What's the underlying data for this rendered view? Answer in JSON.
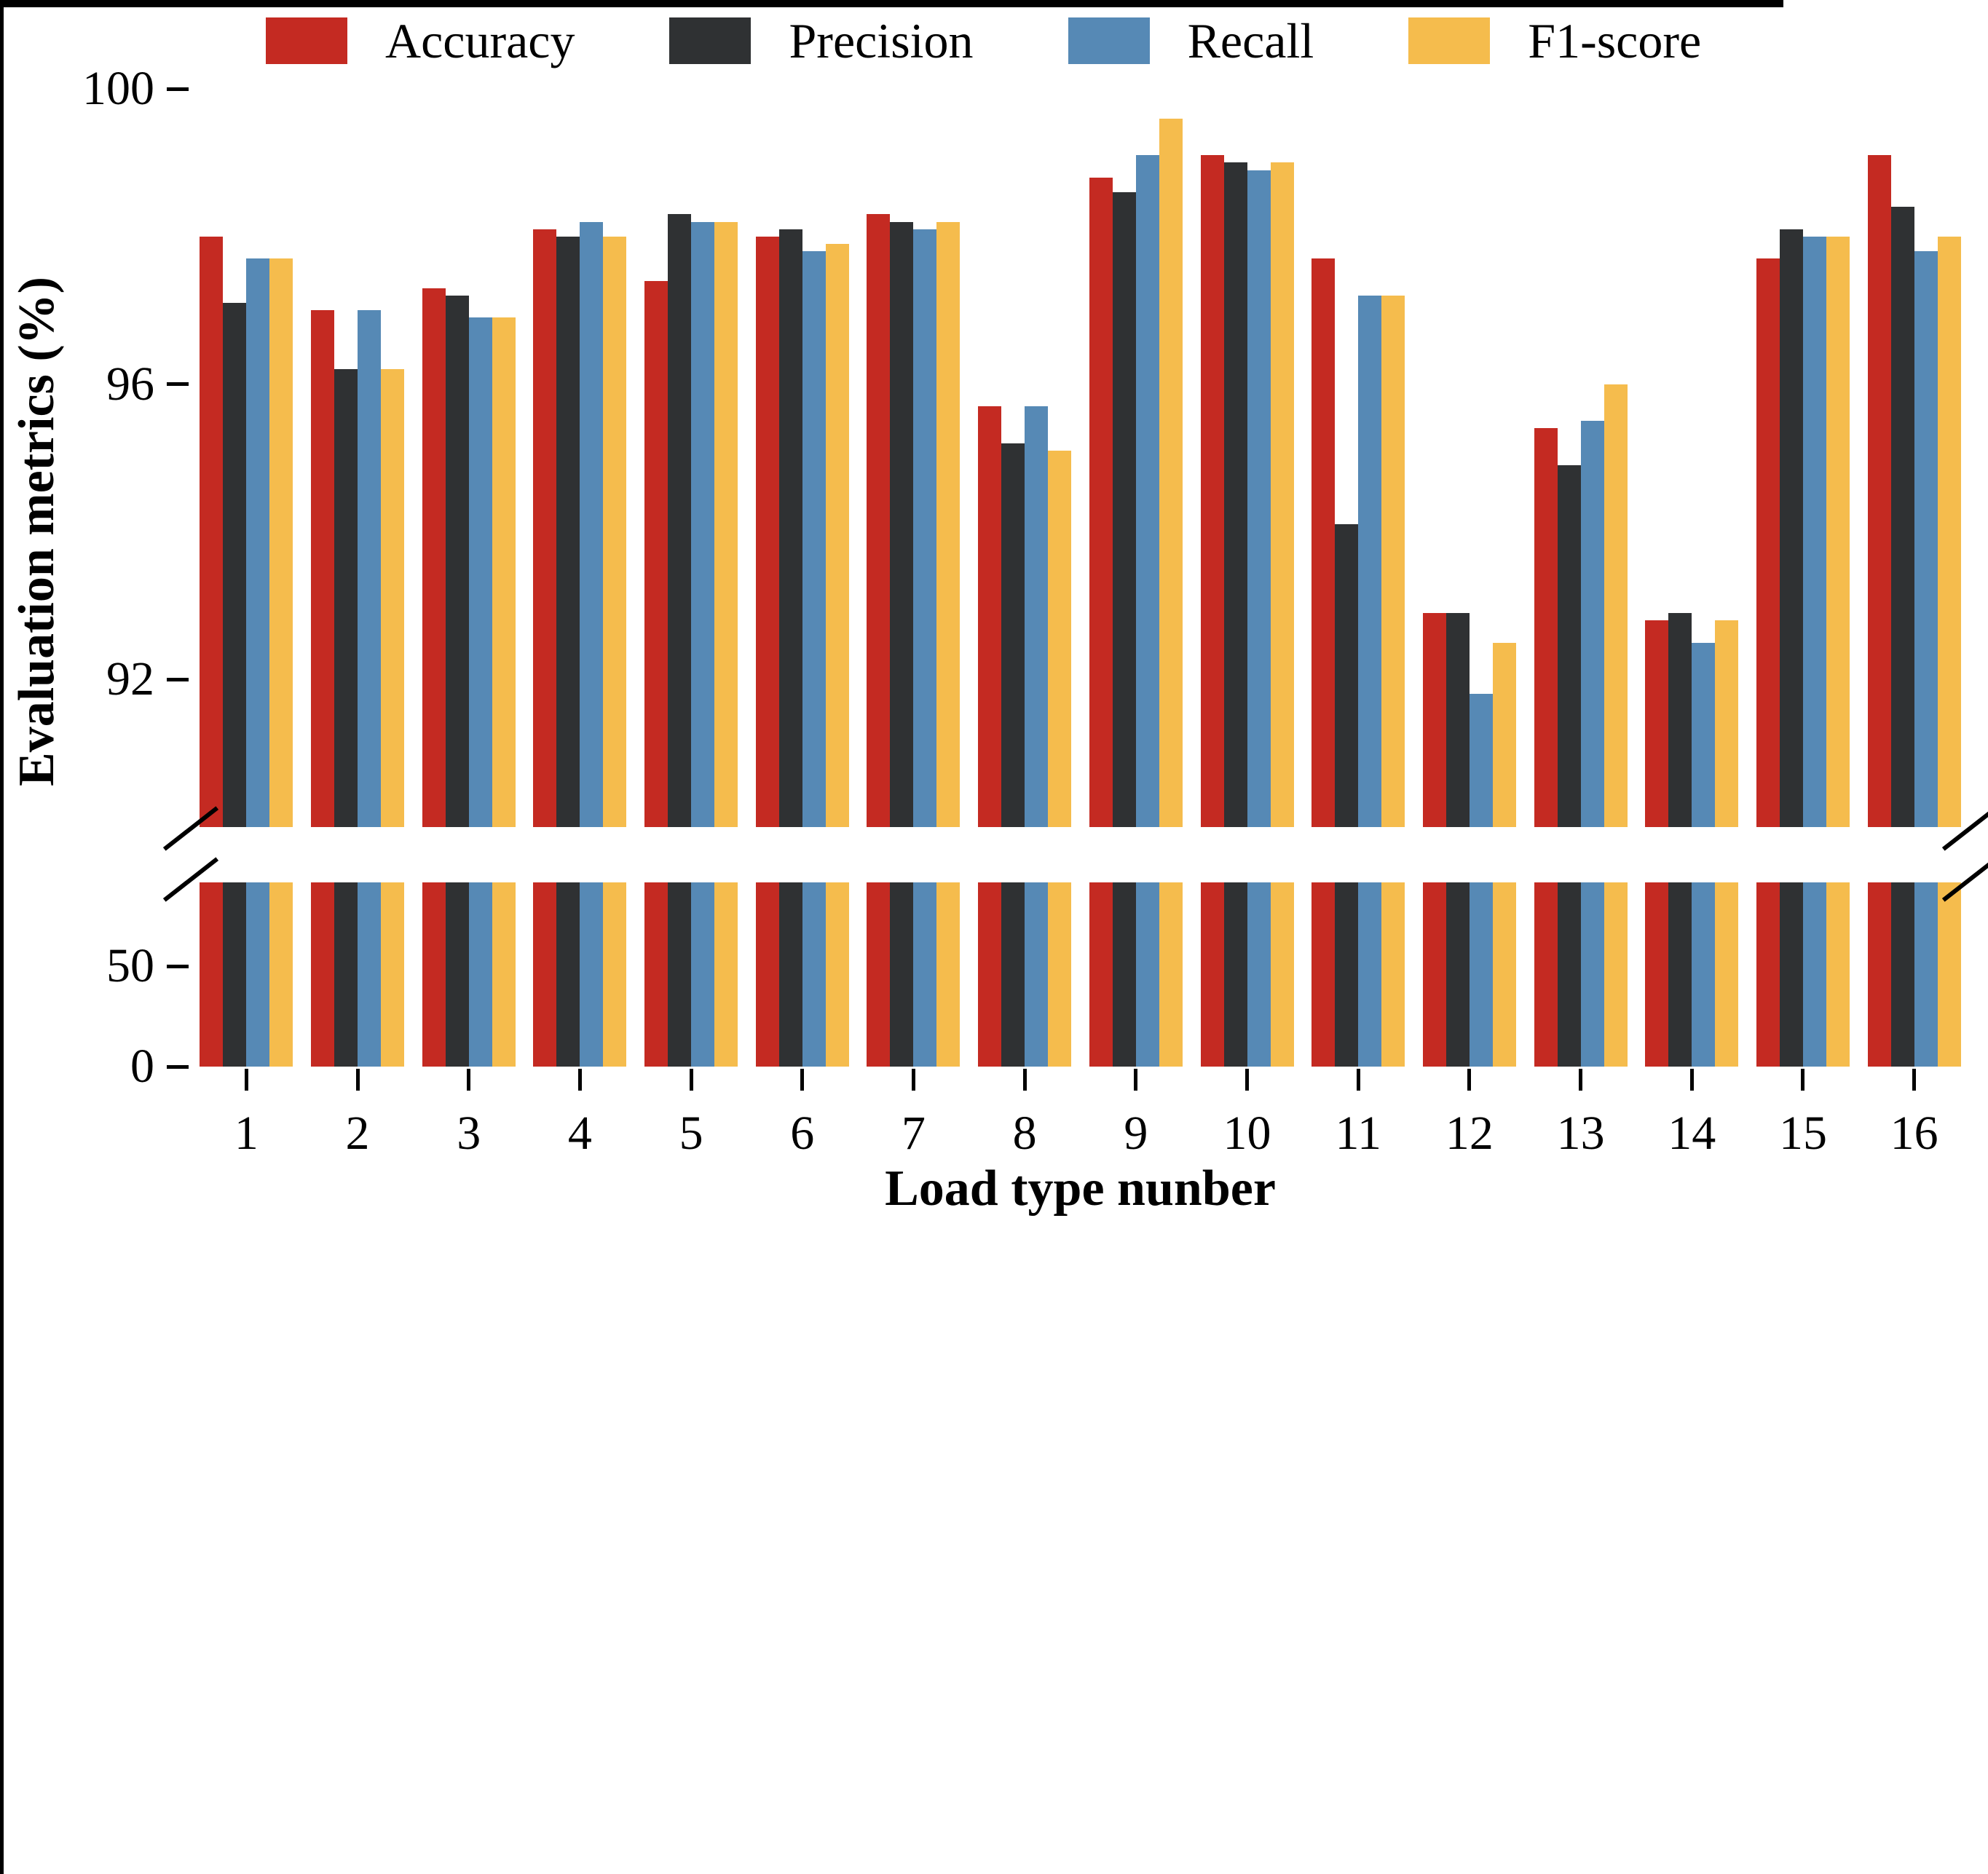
{
  "chart_data": {
    "type": "bar",
    "title": "",
    "xlabel": "Load type nunber",
    "ylabel": "Evaluation metrics (%)",
    "categories": [
      "1",
      "2",
      "3",
      "4",
      "5",
      "6",
      "7",
      "8",
      "9",
      "10",
      "11",
      "12",
      "13",
      "14",
      "15",
      "16"
    ],
    "series": [
      {
        "name": "Accuracy",
        "color": "#c42a22",
        "values": [
          98.0,
          97.0,
          97.3,
          98.1,
          97.4,
          98.0,
          98.3,
          95.7,
          98.8,
          99.1,
          97.7,
          92.9,
          95.4,
          92.8,
          97.7,
          99.1
        ]
      },
      {
        "name": "Precision",
        "color": "#2f3133",
        "values": [
          97.1,
          96.2,
          97.2,
          98.0,
          98.3,
          98.1,
          98.2,
          95.2,
          98.6,
          99.0,
          94.1,
          92.9,
          94.9,
          92.9,
          98.1,
          98.4
        ]
      },
      {
        "name": "Recall",
        "color": "#5689b5",
        "values": [
          97.7,
          97.0,
          96.9,
          98.2,
          98.2,
          97.8,
          98.1,
          95.7,
          99.1,
          98.9,
          97.2,
          91.8,
          95.5,
          92.5,
          98.0,
          97.8
        ]
      },
      {
        "name": "F1-score",
        "color": "#f5bc4d",
        "values": [
          97.7,
          96.2,
          96.9,
          98.0,
          98.2,
          97.9,
          98.2,
          95.1,
          99.6,
          99.0,
          97.2,
          92.5,
          96.0,
          92.8,
          98.0,
          98.0
        ]
      }
    ],
    "y_axis": {
      "broken": true,
      "upper_range": [
        90,
        100
      ],
      "upper_ticks": [
        100,
        96,
        92
      ],
      "lower_range": [
        0,
        91.7
      ],
      "lower_ticks": [
        50,
        0
      ]
    },
    "legend_position": "top",
    "grid": "off",
    "axis_color": "#000000"
  }
}
